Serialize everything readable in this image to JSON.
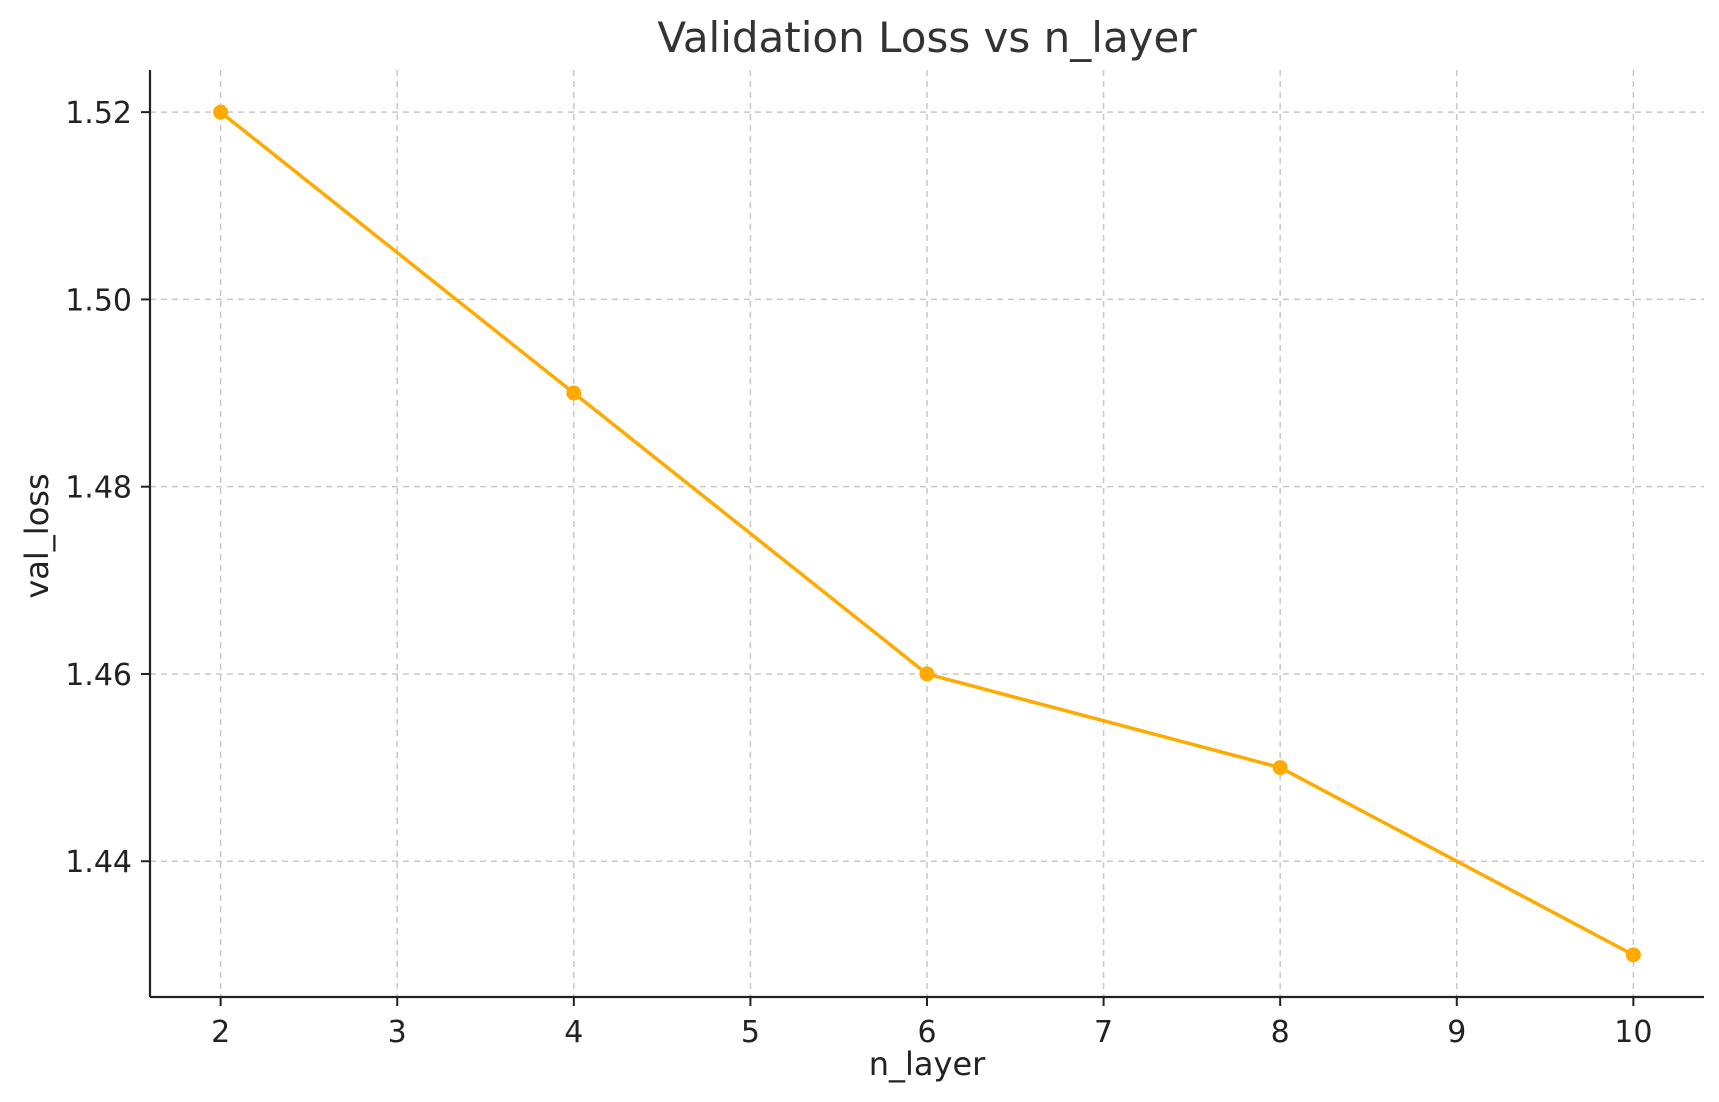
{
  "chart_data": {
    "type": "line",
    "title": "Validation Loss vs n_layer",
    "xlabel": "n_layer",
    "ylabel": "val_loss",
    "x": [
      2,
      4,
      6,
      8,
      10
    ],
    "series": [
      {
        "values": [
          1.52,
          1.49,
          1.46,
          1.45,
          1.43
        ]
      }
    ],
    "xticks": [
      2,
      3,
      4,
      5,
      6,
      7,
      8,
      9,
      10
    ],
    "yticks": [
      1.44,
      1.46,
      1.48,
      1.5,
      1.52
    ],
    "ytick_labels": [
      "1.44",
      "1.46",
      "1.48",
      "1.50",
      "1.52"
    ],
    "xlim": [
      1.6,
      10.4
    ],
    "ylim": [
      1.4255,
      1.5245
    ],
    "grid": true,
    "line_color": "#FFAA00",
    "marker": "circle"
  }
}
